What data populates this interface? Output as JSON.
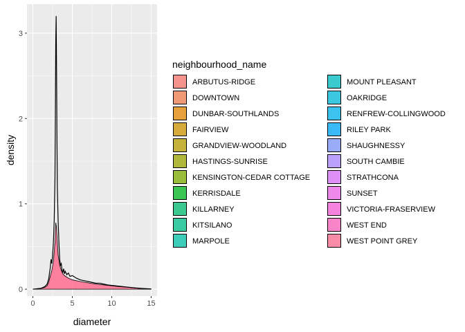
{
  "chart_data": {
    "type": "area",
    "xlabel": "diameter",
    "ylabel": "density",
    "xlim": [
      -0.75,
      15.75
    ],
    "ylim": [
      -0.08,
      3.34
    ],
    "x_ticks": [
      0,
      5,
      10,
      15
    ],
    "x_tick_labels": [
      "0",
      "5",
      "10",
      "15"
    ],
    "y_ticks": [
      0,
      1,
      2,
      3
    ],
    "y_tick_labels": [
      "0",
      "1",
      "2",
      "3"
    ],
    "grid": true,
    "background": "#EBEBEB",
    "legend": {
      "title": "neighbourhood_name",
      "position": "right",
      "columns": 2
    },
    "density_outline": {
      "x": [
        0,
        1.0,
        1.5,
        1.8,
        2.0,
        2.2,
        2.3,
        2.4,
        2.5,
        2.6,
        2.7,
        2.8,
        2.85,
        2.9,
        2.95,
        3.0,
        3.05,
        3.1,
        3.2,
        3.3,
        3.4,
        3.5,
        3.6,
        3.7,
        3.8,
        3.9,
        4.0,
        4.1,
        4.3,
        4.5,
        4.7,
        5.0,
        5.5,
        6.0,
        6.5,
        7.0,
        7.5,
        8.0,
        8.5,
        9.0,
        9.5,
        10.0,
        11.0,
        12.0,
        13.0,
        14.0,
        15.0
      ],
      "y": [
        0,
        0.01,
        0.03,
        0.06,
        0.12,
        0.25,
        0.35,
        0.3,
        0.4,
        0.55,
        0.8,
        1.3,
        2.0,
        2.9,
        3.2,
        2.6,
        1.8,
        1.2,
        0.8,
        0.55,
        0.35,
        0.28,
        0.3,
        0.22,
        0.2,
        0.24,
        0.18,
        0.21,
        0.17,
        0.19,
        0.15,
        0.16,
        0.13,
        0.11,
        0.1,
        0.09,
        0.08,
        0.07,
        0.07,
        0.06,
        0.05,
        0.045,
        0.035,
        0.025,
        0.015,
        0.008,
        0.003
      ]
    },
    "density_fill": {
      "x": [
        0,
        1.0,
        1.5,
        1.8,
        2.0,
        2.2,
        2.4,
        2.6,
        2.8,
        2.9,
        3.0,
        3.1,
        3.2,
        3.4,
        3.6,
        3.8,
        4.0,
        4.5,
        5.0,
        6.0,
        7.0,
        8.0,
        9.0,
        10.0,
        11.0,
        12.0,
        13.0,
        14.0,
        15.0
      ],
      "y": [
        0,
        0.008,
        0.02,
        0.04,
        0.08,
        0.15,
        0.22,
        0.32,
        0.55,
        0.78,
        0.72,
        0.55,
        0.4,
        0.28,
        0.22,
        0.18,
        0.16,
        0.13,
        0.11,
        0.09,
        0.075,
        0.06,
        0.05,
        0.04,
        0.03,
        0.022,
        0.013,
        0.007,
        0.003
      ]
    },
    "series": [
      {
        "name": "ARBUTUS-RIDGE",
        "color": "#F8766D"
      },
      {
        "name": "DOWNTOWN",
        "color": "#F07E4E"
      },
      {
        "name": "DUNBAR-SOUTHLANDS",
        "color": "#E58700"
      },
      {
        "name": "FAIRVIEW",
        "color": "#CF9400"
      },
      {
        "name": "GRANDVIEW-WOODLAND",
        "color": "#B79F00"
      },
      {
        "name": "HASTINGS-SUNRISE",
        "color": "#9CA700"
      },
      {
        "name": "KENSINGTON-CEDAR COTTAGE",
        "color": "#7CAE00"
      },
      {
        "name": "KERRISDALE",
        "color": "#00B81F"
      },
      {
        "name": "KILLARNEY",
        "color": "#00BE70"
      },
      {
        "name": "KITSILANO",
        "color": "#00C08B"
      },
      {
        "name": "MARPOLE",
        "color": "#00C1A9"
      },
      {
        "name": "MOUNT PLEASANT",
        "color": "#00BFC4"
      },
      {
        "name": "OAKRIDGE",
        "color": "#00BBDC"
      },
      {
        "name": "RENFREW-COLLINGWOOD",
        "color": "#00B4F0"
      },
      {
        "name": "RILEY PARK",
        "color": "#00A9FF"
      },
      {
        "name": "SHAUGHNESSY",
        "color": "#7F96FF"
      },
      {
        "name": "SOUTH CAMBIE",
        "color": "#AC88FF"
      },
      {
        "name": "STRATHCONA",
        "color": "#DB72FB"
      },
      {
        "name": "SUNSET",
        "color": "#EF67EB"
      },
      {
        "name": "VICTORIA-FRASERVIEW",
        "color": "#FA62DB"
      },
      {
        "name": "WEST END",
        "color": "#FF62BC"
      },
      {
        "name": "WEST POINT GREY",
        "color": "#FF6C91"
      }
    ]
  }
}
